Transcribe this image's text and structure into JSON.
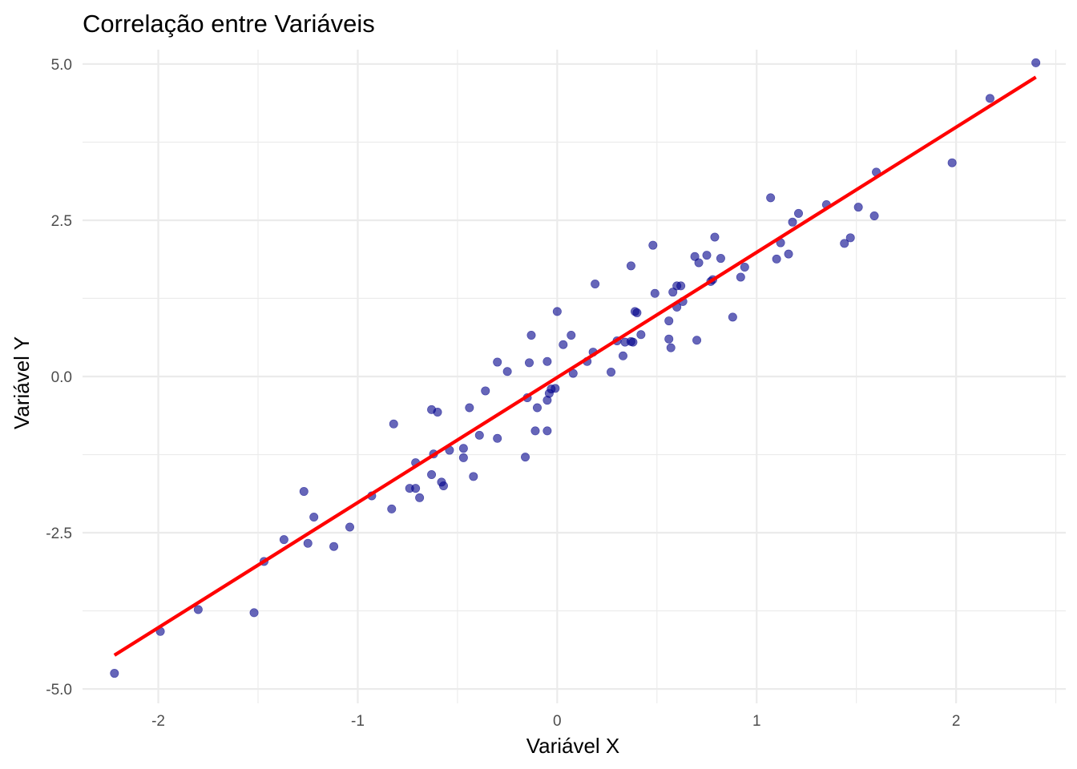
{
  "chart_data": {
    "type": "scatter",
    "title": "Correlação entre Variáveis",
    "xlabel": "Variável X",
    "ylabel": "Variável Y",
    "xlim": [
      -2.38,
      2.55
    ],
    "ylim": [
      -5.23,
      5.23
    ],
    "x_ticks": [
      -2,
      -1,
      0,
      1,
      2
    ],
    "x_tick_labels": [
      "-2",
      "-1",
      "0",
      "1",
      "2"
    ],
    "y_ticks": [
      -5,
      -2.5,
      0,
      2.5,
      5
    ],
    "y_tick_labels": [
      "-5.0",
      "-2.5",
      "0.0",
      "2.5",
      "5.0"
    ],
    "grid": true,
    "point_color": "#00008b",
    "line_color": "#ff0000",
    "trend_line": {
      "x": [
        -2.22,
        2.4
      ],
      "y": [
        -4.46,
        4.79
      ]
    },
    "points": {
      "x": [
        -2.22,
        -1.99,
        -1.8,
        -1.52,
        -1.47,
        -1.37,
        -1.27,
        -1.25,
        -1.22,
        -1.12,
        -1.04,
        -0.93,
        -0.83,
        -0.82,
        -0.74,
        -0.71,
        -0.71,
        -0.69,
        -0.63,
        -0.63,
        -0.62,
        -0.6,
        -0.58,
        -0.57,
        -0.54,
        -0.47,
        -0.47,
        -0.44,
        -0.42,
        -0.39,
        -0.36,
        -0.3,
        -0.3,
        -0.25,
        -0.16,
        -0.15,
        -0.14,
        -0.13,
        -0.11,
        -0.1,
        -0.05,
        -0.05,
        -0.05,
        -0.04,
        -0.03,
        -0.01,
        0.0,
        0.03,
        0.07,
        0.08,
        0.15,
        0.18,
        0.19,
        0.27,
        0.3,
        0.33,
        0.34,
        0.37,
        0.37,
        0.38,
        0.39,
        0.4,
        0.42,
        0.48,
        0.49,
        0.56,
        0.56,
        0.57,
        0.58,
        0.6,
        0.6,
        0.62,
        0.63,
        0.69,
        0.7,
        0.71,
        0.75,
        0.77,
        0.78,
        0.79,
        0.82,
        0.88,
        0.92,
        0.94,
        1.07,
        1.1,
        1.12,
        1.16,
        1.18,
        1.21,
        1.35,
        1.44,
        1.47,
        1.51,
        1.59,
        1.6,
        1.98,
        2.17,
        2.4
      ],
      "y": [
        -4.75,
        -4.08,
        -3.73,
        -3.78,
        -2.96,
        -2.61,
        -1.84,
        -2.67,
        -2.25,
        -2.72,
        -2.41,
        -1.91,
        -2.12,
        -0.76,
        -1.79,
        -1.79,
        -1.38,
        -1.94,
        -0.53,
        -1.57,
        -1.24,
        -0.57,
        -1.69,
        -1.75,
        -1.18,
        -1.15,
        -1.3,
        -0.5,
        -1.6,
        -0.94,
        -0.23,
        -0.99,
        0.23,
        0.08,
        -1.29,
        -0.34,
        0.22,
        0.66,
        -0.87,
        -0.5,
        -0.87,
        -0.38,
        0.24,
        -0.27,
        -0.2,
        -0.19,
        1.04,
        0.51,
        0.66,
        0.05,
        0.24,
        0.39,
        1.48,
        0.07,
        0.57,
        0.33,
        0.55,
        0.56,
        1.77,
        0.55,
        1.04,
        1.02,
        0.67,
        2.1,
        1.33,
        0.89,
        0.6,
        0.46,
        1.35,
        1.45,
        1.11,
        1.45,
        1.2,
        1.92,
        0.58,
        1.82,
        1.94,
        1.52,
        1.55,
        2.23,
        1.89,
        0.95,
        1.59,
        1.75,
        2.86,
        1.88,
        2.14,
        1.96,
        2.47,
        2.61,
        2.75,
        2.13,
        2.22,
        2.71,
        2.57,
        3.27,
        3.42,
        4.45,
        5.02
      ]
    }
  }
}
